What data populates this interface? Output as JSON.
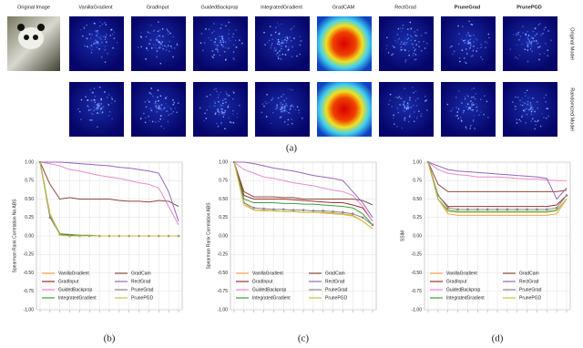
{
  "panel_a": {
    "columns": [
      "Original Image",
      "VanillaGradient",
      "GradInput",
      "GuidedBackprop",
      "IntegratedGradient",
      "GradCAM",
      "RectGrad",
      "PruneGrad",
      "PrunePGD"
    ],
    "rows": [
      "Original Model",
      "Randomized Model"
    ],
    "caption": "(a)"
  },
  "chart_data": [
    {
      "type": "line",
      "caption": "(b)",
      "y_label": "Spearman Rank Correlation No ABS",
      "categories": [
        null,
        null,
        null,
        null,
        null,
        null,
        null,
        null,
        null,
        null,
        null,
        null,
        null,
        null,
        null
      ],
      "ylim": [
        -1,
        1
      ],
      "yticks": [
        {
          "value": -1,
          "label": "-1.00"
        },
        -0.75,
        {
          "value": -0.5,
          "label": "-0.50"
        },
        -0.25,
        {
          "value": 0,
          "label": "0.00"
        },
        0.25,
        {
          "value": 0.5,
          "label": "0.50"
        },
        0.75,
        {
          "value": 1,
          "label": "1.00"
        }
      ],
      "grid": true,
      "series": [
        {
          "name": "VanillaGradient",
          "color": "#f5a04a",
          "values": [
            1,
            0.3,
            0.02,
            0.01,
            0.01,
            0,
            0,
            0,
            0,
            0,
            0,
            0,
            0,
            0,
            0
          ]
        },
        {
          "name": "GradInput",
          "color": "#a03030",
          "values": [
            1,
            0.28,
            0.02,
            0.01,
            0,
            0,
            0,
            0,
            0,
            0,
            0,
            0,
            0,
            0,
            0
          ]
        },
        {
          "name": "GuidedBackprop",
          "color": "#e88ac8",
          "values": [
            1,
            0.98,
            0.95,
            0.9,
            0.88,
            0.85,
            0.82,
            0.8,
            0.78,
            0.75,
            0.72,
            0.7,
            0.65,
            0.4,
            0.15
          ]
        },
        {
          "name": "IntegratedGradient",
          "color": "#3aa03a",
          "values": [
            1,
            0.29,
            0.03,
            0.02,
            0.01,
            0.01,
            0,
            0,
            0,
            0,
            0,
            0,
            0,
            0,
            0
          ]
        },
        {
          "name": "GradCam",
          "color": "#8c4a3a",
          "values": [
            1,
            0.7,
            0.5,
            0.52,
            0.5,
            0.5,
            0.5,
            0.5,
            0.48,
            0.47,
            0.47,
            0.46,
            0.48,
            0.47,
            0.4
          ]
        },
        {
          "name": "RectGrad",
          "color": "#9467bd",
          "values": [
            1,
            1,
            1,
            0.99,
            0.98,
            0.97,
            0.96,
            0.95,
            0.93,
            0.92,
            0.9,
            0.88,
            0.85,
            0.6,
            0.2
          ]
        },
        {
          "name": "PruneGrad",
          "color": "#888888",
          "marker": "o",
          "values": [
            1,
            0.25,
            0.02,
            0,
            0,
            0,
            0,
            0,
            0,
            0,
            0,
            0,
            0,
            0,
            0
          ]
        },
        {
          "name": "PrunePGD",
          "color": "#c8c040",
          "values": [
            1,
            0.3,
            0.01,
            0,
            0,
            0,
            0,
            0,
            0,
            0,
            0,
            0,
            0,
            0,
            0
          ]
        }
      ]
    },
    {
      "type": "line",
      "caption": "(c)",
      "y_label": "Spearman Rank Correlation ABS",
      "categories": [
        null,
        null,
        null,
        null,
        null,
        null,
        null,
        null,
        null,
        null,
        null,
        null,
        null,
        null,
        null
      ],
      "ylim": [
        -1,
        1
      ],
      "yticks": [
        {
          "value": -1,
          "label": "-1.00"
        },
        -0.75,
        {
          "value": -0.5,
          "label": "-0.50"
        },
        -0.25,
        {
          "value": 0,
          "label": "0.00"
        },
        0.25,
        {
          "value": 0.5,
          "label": "0.50"
        },
        0.75,
        {
          "value": 1,
          "label": "1.00"
        }
      ],
      "grid": true,
      "series": [
        {
          "name": "VanillaGradient",
          "color": "#f5a04a",
          "values": [
            1,
            0.45,
            0.35,
            0.35,
            0.34,
            0.33,
            0.33,
            0.32,
            0.32,
            0.32,
            0.31,
            0.3,
            0.28,
            0.2,
            0.1
          ]
        },
        {
          "name": "GradInput",
          "color": "#a03030",
          "values": [
            1,
            0.55,
            0.5,
            0.5,
            0.5,
            0.5,
            0.49,
            0.48,
            0.47,
            0.46,
            0.45,
            0.45,
            0.42,
            0.38,
            0.2
          ]
        },
        {
          "name": "GuidedBackprop",
          "color": "#e88ac8",
          "values": [
            1,
            0.9,
            0.85,
            0.8,
            0.78,
            0.75,
            0.72,
            0.7,
            0.68,
            0.65,
            0.62,
            0.6,
            0.55,
            0.4,
            0.2
          ]
        },
        {
          "name": "IntegratedGradient",
          "color": "#3aa03a",
          "values": [
            1,
            0.5,
            0.45,
            0.45,
            0.45,
            0.44,
            0.44,
            0.43,
            0.43,
            0.42,
            0.41,
            0.4,
            0.38,
            0.3,
            0.15
          ]
        },
        {
          "name": "GradCam",
          "color": "#8c4a3a",
          "values": [
            1,
            0.6,
            0.53,
            0.53,
            0.53,
            0.52,
            0.52,
            0.5,
            0.5,
            0.5,
            0.5,
            0.5,
            0.5,
            0.48,
            0.42
          ]
        },
        {
          "name": "RectGrad",
          "color": "#9467bd",
          "values": [
            1,
            1,
            0.98,
            0.95,
            0.92,
            0.9,
            0.88,
            0.85,
            0.82,
            0.8,
            0.78,
            0.75,
            0.6,
            0.45,
            0.25
          ]
        },
        {
          "name": "PruneGrad",
          "color": "#888888",
          "marker": "o",
          "values": [
            1,
            0.45,
            0.38,
            0.37,
            0.36,
            0.36,
            0.35,
            0.35,
            0.34,
            0.34,
            0.33,
            0.32,
            0.3,
            0.25,
            0.15
          ]
        },
        {
          "name": "PrunePGD",
          "color": "#c8c040",
          "values": [
            1,
            0.42,
            0.35,
            0.34,
            0.34,
            0.33,
            0.33,
            0.32,
            0.32,
            0.31,
            0.3,
            0.29,
            0.27,
            0.2,
            0.1
          ]
        }
      ]
    },
    {
      "type": "line",
      "caption": "(d)",
      "y_label": "SSIM",
      "categories": [
        null,
        null,
        null,
        null,
        null,
        null,
        null,
        null,
        null,
        null,
        null,
        null,
        null,
        null,
        null
      ],
      "ylim": [
        -1,
        1
      ],
      "yticks": [
        {
          "value": -1,
          "label": "-1.00"
        },
        -0.75,
        {
          "value": -0.5,
          "label": "-0.50"
        },
        -0.25,
        {
          "value": 0,
          "label": "0.00"
        },
        0.25,
        {
          "value": 0.5,
          "label": "0.50"
        },
        0.75,
        {
          "value": 1,
          "label": "1.00"
        }
      ],
      "grid": true,
      "series": [
        {
          "name": "VanillaGradient",
          "color": "#f5a04a",
          "values": [
            1,
            0.5,
            0.3,
            0.28,
            0.28,
            0.28,
            0.28,
            0.28,
            0.28,
            0.28,
            0.28,
            0.28,
            0.28,
            0.3,
            0.5
          ]
        },
        {
          "name": "GradInput",
          "color": "#a03030",
          "values": [
            1,
            0.55,
            0.4,
            0.4,
            0.4,
            0.4,
            0.4,
            0.4,
            0.4,
            0.4,
            0.4,
            0.4,
            0.4,
            0.42,
            0.55
          ]
        },
        {
          "name": "GuidedBackprop",
          "color": "#e88ac8",
          "values": [
            1,
            0.9,
            0.85,
            0.83,
            0.82,
            0.8,
            0.8,
            0.8,
            0.79,
            0.78,
            0.77,
            0.77,
            0.76,
            0.75,
            0.75
          ]
        },
        {
          "name": "IntegratedGradient",
          "color": "#3aa03a",
          "values": [
            1,
            0.5,
            0.35,
            0.33,
            0.33,
            0.33,
            0.33,
            0.33,
            0.33,
            0.33,
            0.33,
            0.33,
            0.33,
            0.35,
            0.5
          ]
        },
        {
          "name": "GradCam",
          "color": "#8c4a3a",
          "values": [
            1,
            0.7,
            0.6,
            0.6,
            0.6,
            0.6,
            0.6,
            0.6,
            0.6,
            0.6,
            0.6,
            0.6,
            0.6,
            0.6,
            0.62
          ]
        },
        {
          "name": "RectGrad",
          "color": "#9467bd",
          "values": [
            1,
            0.95,
            0.9,
            0.88,
            0.87,
            0.86,
            0.85,
            0.84,
            0.83,
            0.82,
            0.81,
            0.8,
            0.78,
            0.5,
            0.65
          ]
        },
        {
          "name": "PruneGrad",
          "color": "#888888",
          "marker": "o",
          "values": [
            1,
            0.55,
            0.38,
            0.36,
            0.36,
            0.36,
            0.36,
            0.36,
            0.36,
            0.36,
            0.36,
            0.36,
            0.36,
            0.38,
            0.55
          ]
        },
        {
          "name": "PrunePGD",
          "color": "#c8c040",
          "values": [
            1,
            0.5,
            0.33,
            0.32,
            0.32,
            0.32,
            0.32,
            0.32,
            0.32,
            0.32,
            0.32,
            0.32,
            0.32,
            0.34,
            0.5
          ]
        }
      ]
    }
  ]
}
